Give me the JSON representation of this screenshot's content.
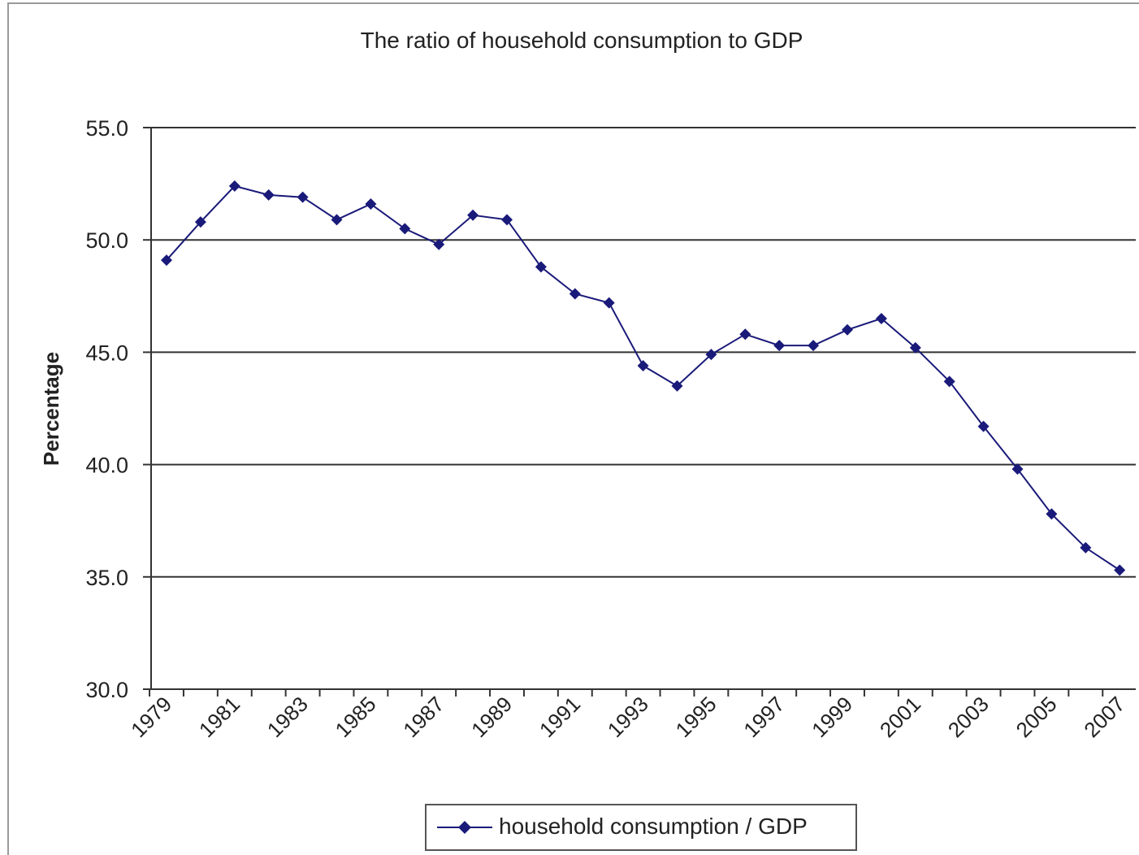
{
  "chart_data": {
    "type": "line",
    "title": "The ratio of household consumption to GDP",
    "xlabel": "",
    "ylabel": "Percentage",
    "ylim": [
      30.0,
      55.0
    ],
    "yticks": [
      "30.0",
      "35.0",
      "40.0",
      "45.0",
      "50.0",
      "55.0"
    ],
    "xtick_labels": [
      "1979",
      "1981",
      "1983",
      "1985",
      "1987",
      "1989",
      "1991",
      "1993",
      "1995",
      "1997",
      "1999",
      "2001",
      "2003",
      "2005",
      "2007"
    ],
    "grid": "horizontal",
    "legend_position": "bottom",
    "series": [
      {
        "name": "household consumption / GDP",
        "color": "#1a1a7a",
        "marker": "diamond",
        "x": [
          1979,
          1980,
          1981,
          1982,
          1983,
          1984,
          1985,
          1986,
          1987,
          1988,
          1989,
          1990,
          1991,
          1992,
          1993,
          1994,
          1995,
          1996,
          1997,
          1998,
          1999,
          2000,
          2001,
          2002,
          2003,
          2004,
          2005,
          2006,
          2007
        ],
        "values": [
          49.1,
          50.8,
          52.4,
          52.0,
          51.9,
          50.9,
          51.6,
          50.5,
          49.8,
          51.1,
          50.9,
          48.8,
          47.6,
          47.2,
          44.4,
          43.5,
          44.9,
          45.8,
          45.3,
          45.3,
          46.0,
          46.5,
          45.2,
          43.7,
          41.7,
          39.8,
          37.8,
          36.3,
          35.3
        ]
      }
    ]
  }
}
